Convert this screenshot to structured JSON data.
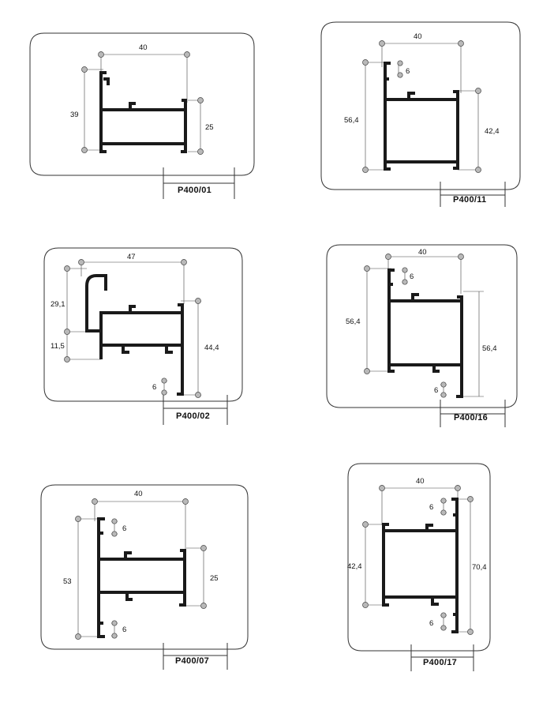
{
  "sheet": {
    "profiles": [
      {
        "code": "P400/01",
        "dims": [
          "40",
          "39",
          "25"
        ]
      },
      {
        "code": "P400/11",
        "dims": [
          "40",
          "6",
          "56,4",
          "42,4"
        ]
      },
      {
        "code": "P400/02",
        "dims": [
          "47",
          "29,1",
          "11,5",
          "44,4",
          "6"
        ]
      },
      {
        "code": "P400/16",
        "dims": [
          "40",
          "6",
          "56,4",
          "56,4",
          "6"
        ]
      },
      {
        "code": "P400/07",
        "dims": [
          "40",
          "6",
          "53",
          "25",
          "6"
        ]
      },
      {
        "code": "P400/17",
        "dims": [
          "40",
          "6",
          "42,4",
          "70,4",
          "6"
        ]
      }
    ]
  },
  "colors": {
    "profile": "#1a1a1a",
    "frame": "#333333",
    "marker": "#b9b9b9"
  }
}
